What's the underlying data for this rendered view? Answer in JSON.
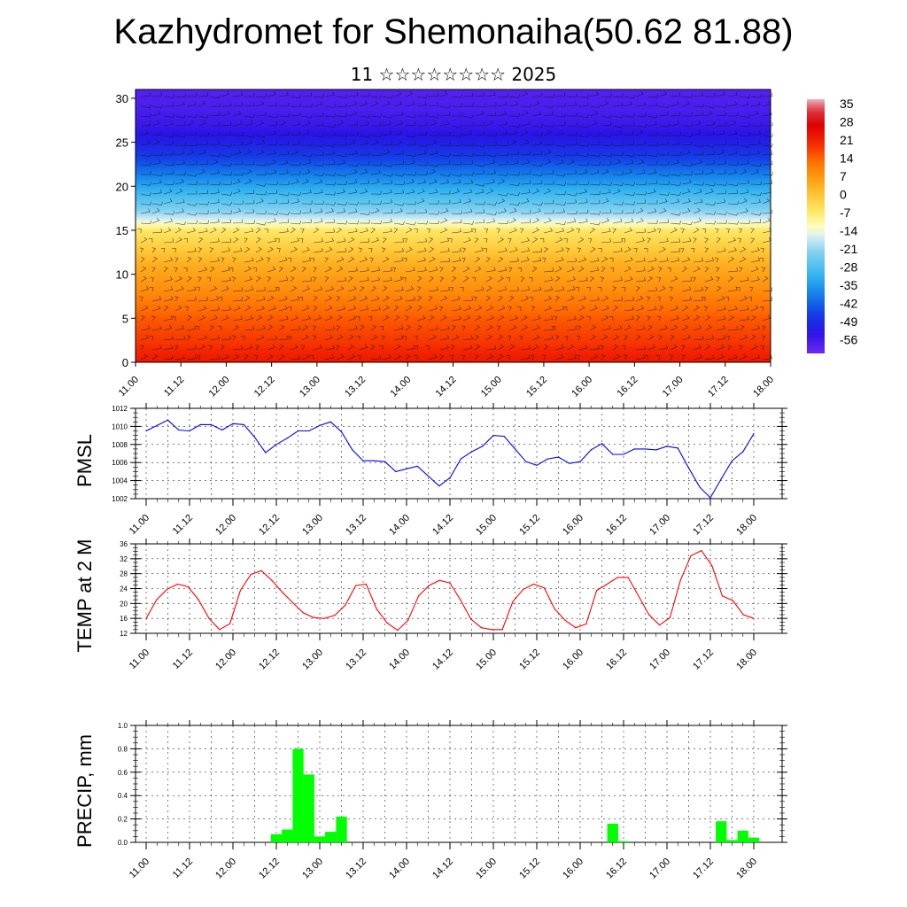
{
  "header": {
    "title": "Kazhydromet for Shemonaiha(50.62 81.88)",
    "subtitle": "11 ☆☆☆☆☆☆☆☆ 2025"
  },
  "chart_data": [
    {
      "id": "cross_section",
      "type": "heatmap",
      "title": "",
      "xlabel": "",
      "ylabel": "",
      "xlim": [
        11.0,
        18.0
      ],
      "ylim": [
        0,
        31
      ],
      "y_ticks": [
        0,
        5,
        10,
        15,
        20,
        25,
        30
      ],
      "x_ticks": [
        "11.00",
        "11.12",
        "12.00",
        "12.12",
        "13.00",
        "13.12",
        "14.00",
        "14.12",
        "15.00",
        "15.12",
        "16.00",
        "16.12",
        "17.00",
        "17.12",
        "18.00"
      ],
      "overlay": "wind barbs",
      "colorbar": {
        "placement": "right",
        "labels": [
          "35",
          "28",
          "21",
          "14",
          "7",
          "0",
          "-7",
          "-14",
          "-21",
          "-28",
          "-35",
          "-42",
          "-49",
          "-56"
        ],
        "min": -60,
        "max": 38
      },
      "temperature_profile": {
        "levels": [
          0,
          2,
          5,
          8,
          11,
          13,
          15,
          15.8,
          17,
          19,
          21,
          23,
          25,
          27,
          29,
          31
        ],
        "values": [
          24,
          20,
          16,
          10,
          5,
          0,
          -5,
          -12,
          -20,
          -28,
          -36,
          -44,
          -50,
          -54,
          -56,
          -57
        ]
      }
    },
    {
      "id": "pmsl",
      "type": "line",
      "ylabel": "PMSL",
      "ylim": [
        1002,
        1012
      ],
      "y_ticks": [
        "1002",
        "1004",
        "1006",
        "1008",
        "1010",
        "1012"
      ],
      "x_ticks": [
        "11.00",
        "11.12",
        "12.00",
        "12.12",
        "13.00",
        "13.12",
        "14.00",
        "14.12",
        "15.00",
        "15.12",
        "16.00",
        "16.12",
        "17.00",
        "17.12",
        "18.00"
      ],
      "x_range": [
        0,
        56
      ],
      "grid": true,
      "color": "#0000ff",
      "values": [
        1009.5,
        1010.1,
        1010.7,
        1009.6,
        1009.5,
        1010.2,
        1010.2,
        1009.6,
        1010.3,
        1010.2,
        1008.8,
        1007.1,
        1008.0,
        1008.7,
        1009.5,
        1009.5,
        1010.1,
        1010.5,
        1009.4,
        1007.4,
        1006.2,
        1006.2,
        1006.1,
        1005.0,
        1005.3,
        1005.6,
        1004.5,
        1003.4,
        1004.3,
        1006.4,
        1007.2,
        1007.8,
        1009.0,
        1008.9,
        1007.5,
        1006.1,
        1005.7,
        1006.4,
        1006.6,
        1005.9,
        1006.1,
        1007.4,
        1008.1,
        1006.9,
        1006.9,
        1007.5,
        1007.5,
        1007.4,
        1007.8,
        1007.6,
        1005.4,
        1003.3,
        1002.1,
        1004.2,
        1006.2,
        1007.2,
        1009.2
      ]
    },
    {
      "id": "temp2m",
      "type": "line",
      "ylabel": "TEMP at 2 M",
      "ylim": [
        12,
        36
      ],
      "y_ticks": [
        "12",
        "16",
        "20",
        "24",
        "28",
        "32",
        "36"
      ],
      "x_ticks": [
        "11.00",
        "11.12",
        "12.00",
        "12.12",
        "13.00",
        "13.12",
        "14.00",
        "14.12",
        "15.00",
        "15.12",
        "16.00",
        "16.12",
        "17.00",
        "17.12",
        "18.00"
      ],
      "x_range": [
        0,
        56
      ],
      "grid": true,
      "color": "#ff0000",
      "values": [
        16,
        21,
        23.8,
        25.2,
        24.5,
        21,
        16,
        13,
        14.6,
        23.5,
        27.8,
        28.8,
        26.2,
        23,
        20.2,
        17.5,
        16.2,
        16,
        16.8,
        19.5,
        24.8,
        25.2,
        18.5,
        14.8,
        12.8,
        15.5,
        22,
        24.8,
        26.2,
        25.5,
        21,
        15.8,
        13.5,
        13,
        13,
        20.5,
        23.8,
        25.2,
        24.2,
        18.5,
        15.5,
        13.5,
        14.5,
        23.5,
        25.2,
        27,
        27,
        22,
        17,
        14.2,
        16.2,
        26.2,
        32.8,
        34.2,
        30.2,
        22,
        20.8,
        17,
        16
      ]
    },
    {
      "id": "precip",
      "type": "bar",
      "ylabel": "PRECIP, mm",
      "ylim": [
        0,
        1.0
      ],
      "y_ticks": [
        "0.0",
        "0.2",
        "0.4",
        "0.6",
        "0.8",
        "1.0"
      ],
      "x_ticks": [
        "11.00",
        "11.12",
        "12.00",
        "12.12",
        "13.00",
        "13.12",
        "14.00",
        "14.12",
        "15.00",
        "15.12",
        "16.00",
        "16.12",
        "17.00",
        "17.12",
        "18.00"
      ],
      "x_range": [
        0,
        56
      ],
      "grid": true,
      "color": "#00ff00",
      "values": [
        0,
        0,
        0,
        0,
        0,
        0,
        0,
        0,
        0,
        0,
        0,
        0,
        0.07,
        0.11,
        0.8,
        0.58,
        0.05,
        0.09,
        0.22,
        0,
        0,
        0,
        0,
        0,
        0,
        0,
        0,
        0,
        0,
        0,
        0,
        0,
        0,
        0,
        0,
        0,
        0,
        0,
        0,
        0,
        0,
        0,
        0,
        0.16,
        0.01,
        0,
        0,
        0,
        0,
        0,
        0,
        0,
        0,
        0.18,
        0.02,
        0.1,
        0.04
      ]
    }
  ]
}
